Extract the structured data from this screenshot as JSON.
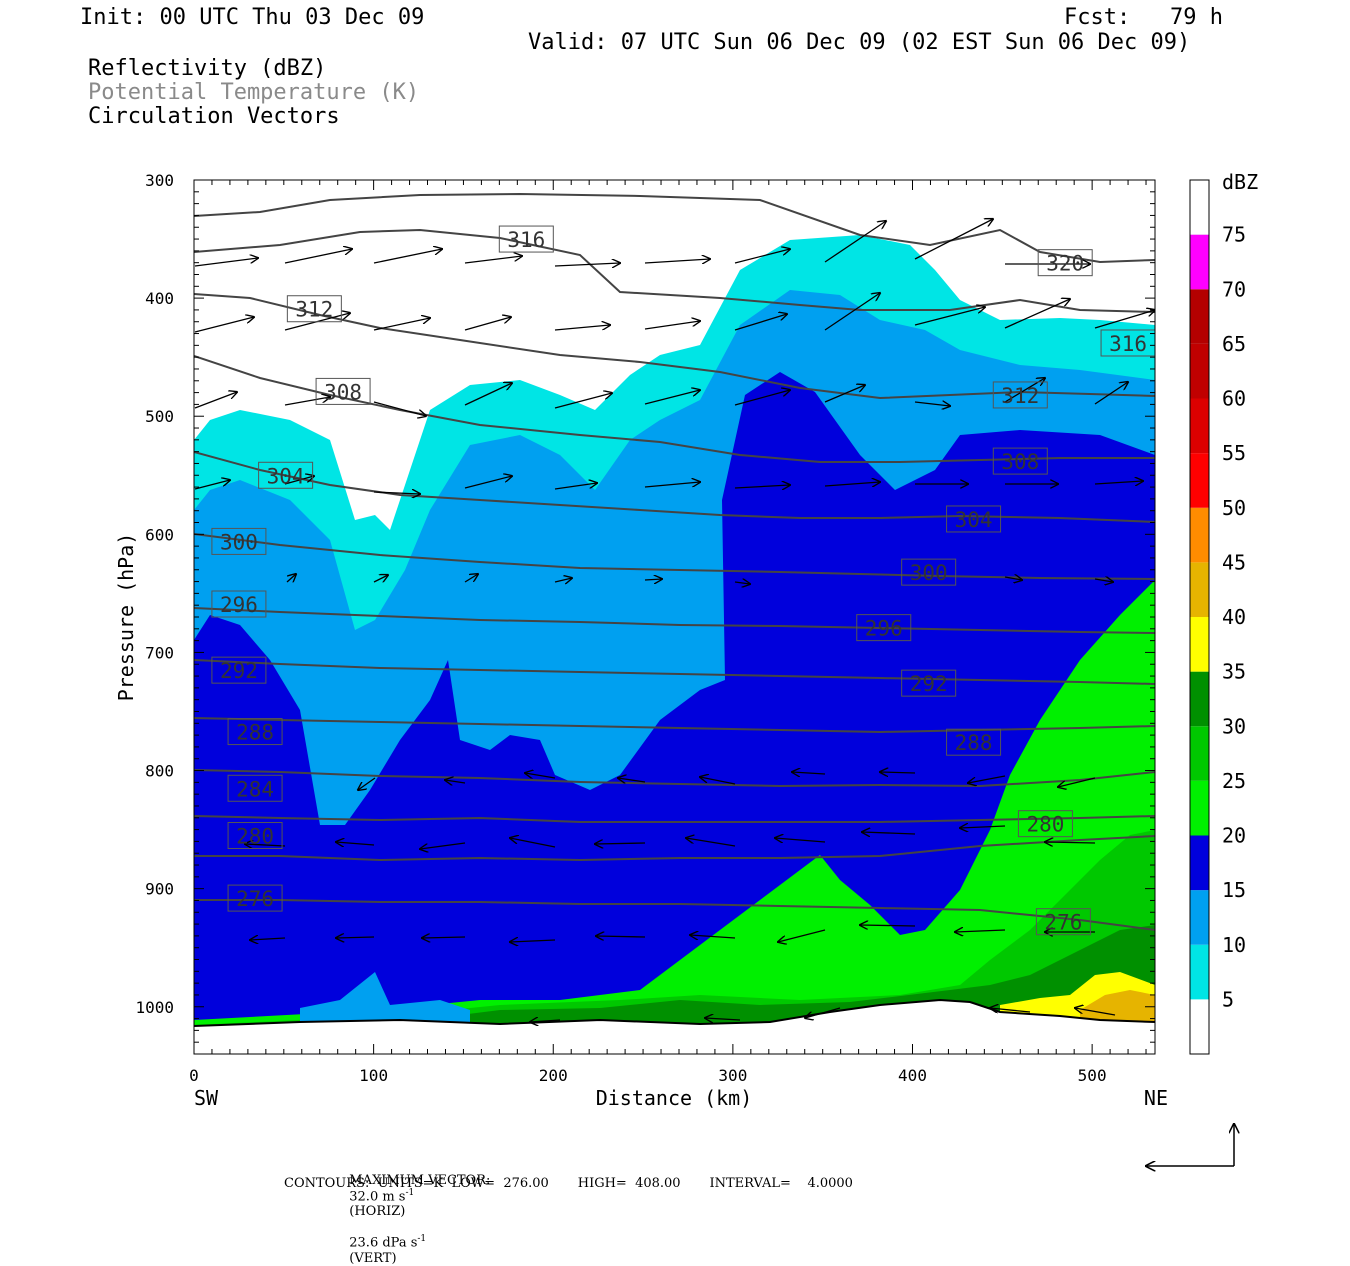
{
  "header": {
    "init": "Init: 00 UTC Thu 03 Dec 09",
    "fcst": "Fcst:   79 h",
    "valid": "Valid: 07 UTC Sun 06 Dec 09 (02 EST Sun 06 Dec 09)",
    "field1": "Reflectivity (dBZ)",
    "field2": "Potential Temperature (K)",
    "field3": "Circulation Vectors"
  },
  "footer": {
    "max_vector_label": "MAXIMUM VECTOR:",
    "max_horiz": "32.0 m s",
    "horiz_unit": "(HORIZ)",
    "max_vert": "23.6 dPa s",
    "vert_unit": "(VERT)",
    "contours": "CONTOURS:  UNITS=K  LOW=  276.00       HIGH=  408.00       INTERVAL=    4.0000"
  },
  "colors": {
    "theta_line": "#444444",
    "r5": "#00e5e5",
    "r10": "#00a0f0",
    "r15": "#0000dc",
    "r20": "#00f000",
    "r25": "#00c800",
    "r30": "#009000",
    "r35": "#ffff00",
    "r40": "#e6b400",
    "r45": "#ff8c00",
    "r50": "#ff0000",
    "r55": "#dc0000",
    "r60": "#c00000",
    "r65": "#b40000",
    "r70": "#ff00ff",
    "r75": "#9650c8"
  },
  "chart_data": {
    "type": "heatmap",
    "title": "Reflectivity (dBZ)",
    "xlabel": "Distance (km)",
    "ylabel": "Pressure (hPa)",
    "xlim": [
      0,
      535
    ],
    "ylim": [
      1040,
      300
    ],
    "x_ticks": [
      "0",
      "100",
      "200",
      "300",
      "400",
      "500"
    ],
    "y_ticks": [
      "300",
      "400",
      "500",
      "600",
      "700",
      "800",
      "900",
      "1000"
    ],
    "x_end_labels": {
      "left": "SW",
      "right": "NE"
    },
    "colorbar": {
      "title": "dBZ",
      "levels": [
        "5",
        "10",
        "15",
        "20",
        "25",
        "30",
        "35",
        "40",
        "45",
        "50",
        "55",
        "60",
        "65",
        "70",
        "75"
      ]
    },
    "theta_contours": [
      {
        "label": "316",
        "x": 185,
        "p": 350
      },
      {
        "label": "320",
        "x": 485,
        "p": 370
      },
      {
        "label": "312",
        "x": 67,
        "p": 409
      },
      {
        "label": "316",
        "x": 520,
        "p": 438
      },
      {
        "label": "308",
        "x": 83,
        "p": 479
      },
      {
        "label": "312",
        "x": 460,
        "p": 482
      },
      {
        "label": "304",
        "x": 51,
        "p": 550
      },
      {
        "label": "308",
        "x": 460,
        "p": 538
      },
      {
        "label": "304",
        "x": 434,
        "p": 587
      },
      {
        "label": "300",
        "x": 25,
        "p": 606
      },
      {
        "label": "300",
        "x": 409,
        "p": 632
      },
      {
        "label": "296",
        "x": 25,
        "p": 659
      },
      {
        "label": "296",
        "x": 384,
        "p": 679
      },
      {
        "label": "292",
        "x": 25,
        "p": 715
      },
      {
        "label": "292",
        "x": 409,
        "p": 726
      },
      {
        "label": "288",
        "x": 34,
        "p": 767
      },
      {
        "label": "288",
        "x": 434,
        "p": 776
      },
      {
        "label": "284",
        "x": 34,
        "p": 815
      },
      {
        "label": "280",
        "x": 34,
        "p": 855
      },
      {
        "label": "280",
        "x": 474,
        "p": 845
      },
      {
        "label": "276",
        "x": 34,
        "p": 908
      },
      {
        "label": "276",
        "x": 484,
        "p": 928
      }
    ],
    "legend": [
      "Reflectivity (dBZ)",
      "Potential Temperature (K)",
      "Circulation Vectors"
    ]
  }
}
